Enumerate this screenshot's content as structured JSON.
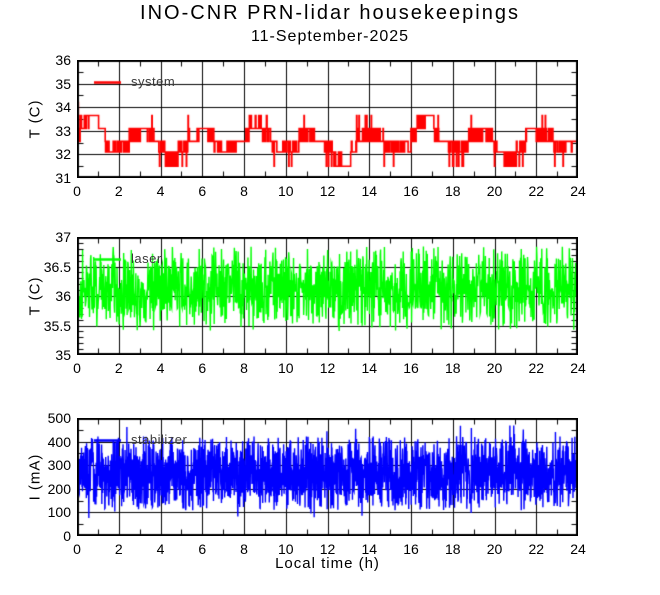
{
  "title": "INO-CNR PRN-lidar housekeepings",
  "subtitle": "11-September-2025",
  "x_axis": {
    "label": "Local time (h)",
    "range": [
      0,
      24
    ],
    "ticks": [
      0,
      2,
      4,
      6,
      8,
      10,
      12,
      14,
      16,
      18,
      20,
      22,
      24
    ],
    "tick_labels": [
      "0",
      "2",
      "4",
      "6",
      "8",
      "10",
      "12",
      "14",
      "16",
      "18",
      "20",
      "22",
      "24"
    ],
    "minor_step": 1
  },
  "chart_data": [
    {
      "type": "line",
      "panel": "system-temperature",
      "legend": "system",
      "color": "#ff0000",
      "ylabel": "T (C)",
      "ylim": [
        31,
        36
      ],
      "yticks": [
        31,
        32,
        33,
        34,
        35,
        36
      ],
      "ytick_labels": [
        "31",
        "32",
        "33",
        "34",
        "35",
        "36"
      ],
      "yminor_step": 0.5,
      "grid": true,
      "signal": {
        "kind": "quantized-toggle",
        "levels": [
          31.5,
          32.1,
          32.55,
          33.1,
          33.65
        ],
        "cycle_hours": 2.7,
        "samples_per_hour": 60,
        "seed": 7,
        "startup_spike": {
          "time_h": 0.03,
          "peak": 35.8
        }
      },
      "summary": "System temperature toggles between quantized levels 31.5-33.65 C in a ~2.7 h square-wave pattern, mostly within 32.1-33.1 C, with a startup spike to ~35.8 C at t=0."
    },
    {
      "type": "line",
      "panel": "laser-temperature",
      "legend": "laser",
      "color": "#00ff00",
      "ylabel": "T (C)",
      "ylim": [
        35,
        37
      ],
      "yticks": [
        35,
        35.5,
        36,
        36.5,
        37
      ],
      "ytick_labels": [
        "35",
        "35.5",
        "36",
        "36.5",
        "37"
      ],
      "yminor_step": 0.1,
      "grid": true,
      "signal": {
        "kind": "noise-band",
        "n": 1440,
        "center": 36.12,
        "half_width": 0.72,
        "seed": 101
      },
      "summary": "Laser temperature oscillates rapidly between ~35.4 and ~36.85 C around a ~36.1 C mean for the whole 24 h."
    },
    {
      "type": "line",
      "panel": "stabilizer-current",
      "legend": "stabilizer",
      "color": "#0000ff",
      "ylabel": "I (mA)",
      "ylim": [
        0,
        500
      ],
      "yticks": [
        0,
        100,
        200,
        300,
        400,
        500
      ],
      "ytick_labels": [
        "0",
        "100",
        "200",
        "300",
        "400",
        "500"
      ],
      "yminor_step": 50,
      "grid": true,
      "signal": {
        "kind": "noise-band",
        "n": 2200,
        "center": 265,
        "half_width": 158,
        "seed": 42,
        "spike_up": {
          "p": 0.005,
          "base": 425,
          "spread": 45
        },
        "spike_down": {
          "p": 0.004,
          "base": 70,
          "spread": 40
        }
      },
      "summary": "Stabilizer current noise band between ~100 and ~430 mA around a ~265 mA mean, with rare spikes to ~470 mA and dips to ~70 mA."
    }
  ]
}
